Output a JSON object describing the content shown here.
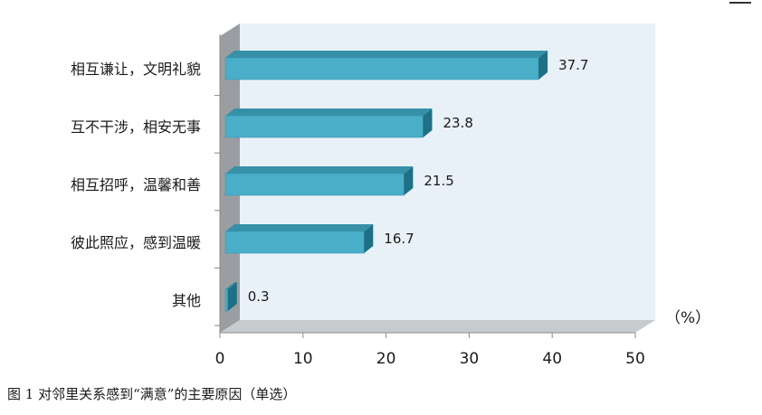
{
  "chart_data": {
    "type": "bar",
    "orientation": "horizontal",
    "categories": [
      "相互谦让，文明礼貌",
      "互不干涉，相安无事",
      "相互招呼，温馨和善",
      "彼此照应，感到温暖",
      "其他"
    ],
    "values": [
      37.7,
      23.8,
      21.5,
      16.7,
      0.3
    ],
    "data_labels": [
      "37.7",
      "23.8",
      "21.5",
      "16.7",
      "0.3"
    ],
    "xlim": [
      0,
      50
    ],
    "xticks": [
      "0",
      "10",
      "20",
      "30",
      "40",
      "50"
    ],
    "unit": "（%）",
    "style": "3d",
    "grid": false,
    "colors": {
      "bar_front": "#4aaec8",
      "bar_top": "#3690a8",
      "bar_side": "#1f6f85",
      "wall": "#e9f1f8",
      "floor": "#c8cbce",
      "side_wall": "#9a9ea3"
    }
  },
  "caption": "图 1 对邻里关系感到“满意”的主要原因（单选）"
}
